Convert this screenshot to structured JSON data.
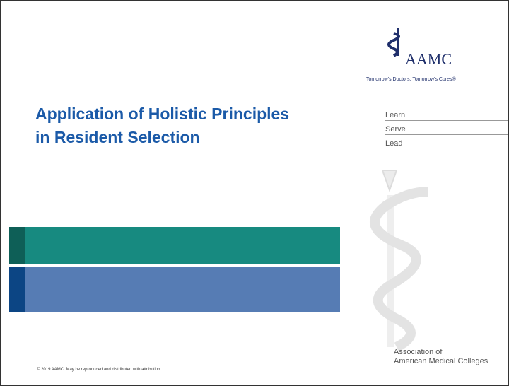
{
  "logo": {
    "name": "AAMC",
    "tagline": "Tomorrow's Doctors, Tomorrow's Cures®"
  },
  "title_lines": [
    "Application of Holistic Principles",
    "in Resident Selection"
  ],
  "values": [
    "Learn",
    "Serve",
    "Lead"
  ],
  "organization": [
    "Association of",
    "American Medical Colleges"
  ],
  "footer": "© 2019 AAMC. May be reproduced and distributed with attribution."
}
